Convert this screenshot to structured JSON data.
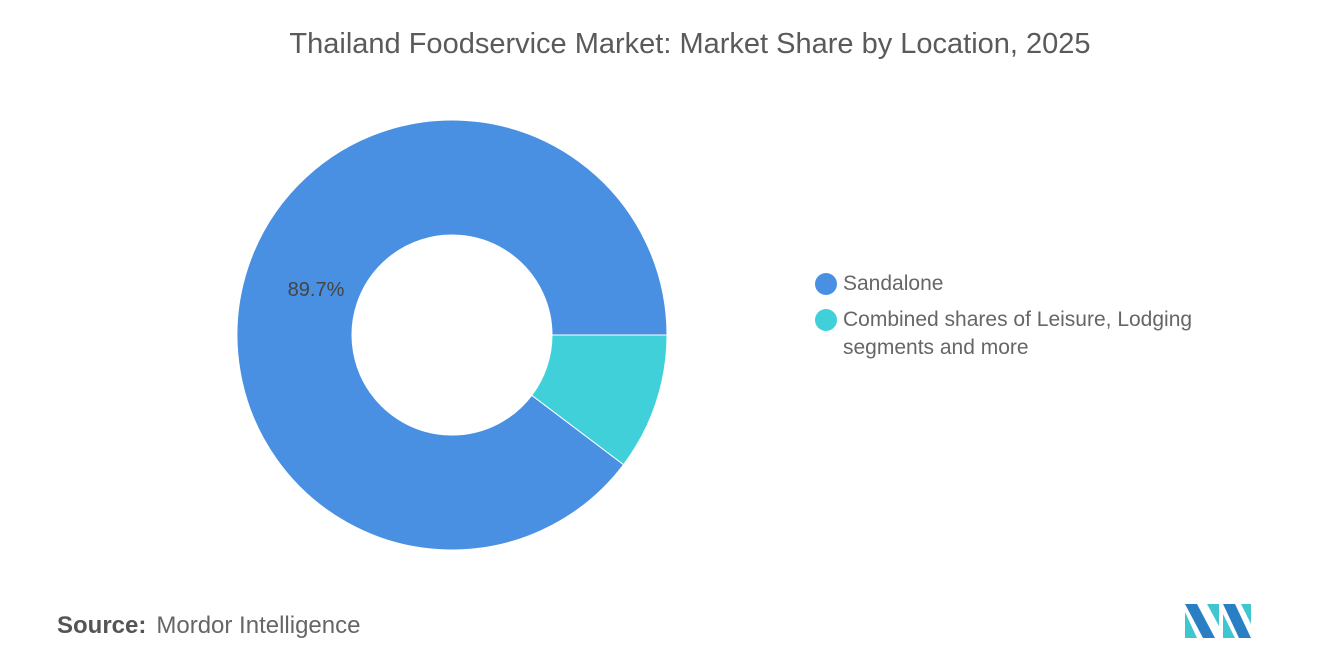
{
  "chart_data": {
    "type": "pie",
    "variant": "donut",
    "title": "Thailand Foodservice Market: Market Share by Location, 2025",
    "slices": [
      {
        "label": "Sandalone",
        "value": 89.7,
        "data_label": "89.7%",
        "color": "#4a90e2"
      },
      {
        "label": "Combined shares of Leisure, Lodging segments and more",
        "value": 10.3,
        "color": "#40d0d9"
      }
    ],
    "legend_position": "right"
  },
  "source": {
    "label": "Source:",
    "text": "Mordor Intelligence"
  }
}
